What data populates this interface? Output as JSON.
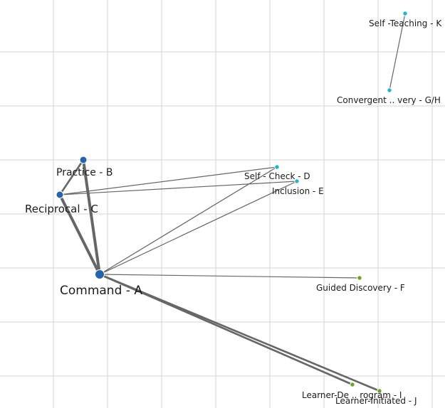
{
  "colors": {
    "background": "#ffffff",
    "grid": "#d4d4d4",
    "edge": "#666666",
    "cluster_blue": "#2166ac",
    "cluster_cyan": "#1ab8c8",
    "cluster_green": "#6aa528"
  },
  "nodes": [
    {
      "id": "A",
      "label": "Command - A",
      "cluster": "blue",
      "size": "large"
    },
    {
      "id": "B",
      "label": "Practice - B",
      "cluster": "blue",
      "size": "medium"
    },
    {
      "id": "C",
      "label": "Reciprocal - C",
      "cluster": "blue",
      "size": "medium"
    },
    {
      "id": "D",
      "label": "Self - Check - D",
      "cluster": "cyan",
      "size": "small"
    },
    {
      "id": "E",
      "label": "Inclusion - E",
      "cluster": "cyan",
      "size": "small"
    },
    {
      "id": "F",
      "label": "Guided Discovery - F",
      "cluster": "green",
      "size": "small"
    },
    {
      "id": "GH",
      "label": "Convergent .. very - G/H",
      "cluster": "cyan",
      "size": "small"
    },
    {
      "id": "I",
      "label": "Learner-De .. rogram - I",
      "cluster": "green",
      "size": "small"
    },
    {
      "id": "J",
      "label": "Learner-Initiated - J",
      "cluster": "green",
      "size": "small"
    },
    {
      "id": "K",
      "label": "Self -Teaching - K",
      "cluster": "cyan",
      "size": "small"
    }
  ],
  "edges": [
    {
      "source": "A",
      "target": "C",
      "weight": "strong"
    },
    {
      "source": "A",
      "target": "B",
      "weight": "strong"
    },
    {
      "source": "B",
      "target": "C",
      "weight": "medium"
    },
    {
      "source": "A",
      "target": "D",
      "weight": "light"
    },
    {
      "source": "A",
      "target": "E",
      "weight": "light"
    },
    {
      "source": "A",
      "target": "F",
      "weight": "light"
    },
    {
      "source": "A",
      "target": "I",
      "weight": "medium"
    },
    {
      "source": "A",
      "target": "J",
      "weight": "medium"
    },
    {
      "source": "C",
      "target": "D",
      "weight": "light"
    },
    {
      "source": "C",
      "target": "E",
      "weight": "light"
    },
    {
      "source": "GH",
      "target": "K",
      "weight": "light"
    }
  ]
}
